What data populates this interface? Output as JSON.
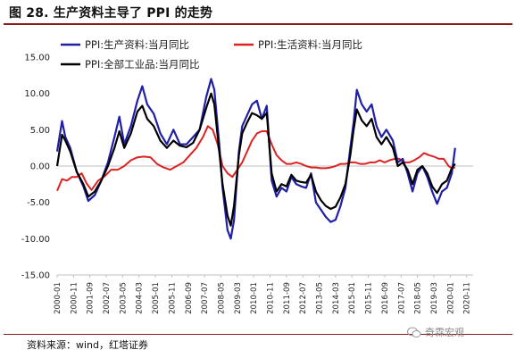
{
  "title": "图 28. 生产资料主导了 PPI 的走势",
  "source": "资料来源：wind，红塔证券",
  "watermark": "奇霖宏观",
  "chart_data": {
    "type": "line",
    "y_ticks": [
      "15.00",
      "10.00",
      "5.00",
      "0.00",
      "-5.00",
      "-10.00",
      "-15.00"
    ],
    "ylim": [
      -15,
      15
    ],
    "legend_position": "top-left",
    "grid": false,
    "x_ticks": [
      "2000-01",
      "2000-11",
      "2001-09",
      "2002-07",
      "2003-05",
      "2004-03",
      "2005-01",
      "2005-11",
      "2006-09",
      "2007-07",
      "2008-05",
      "2009-03",
      "2010-01",
      "2010-11",
      "2011-09",
      "2012-07",
      "2013-05",
      "2014-03",
      "2015-01",
      "2015-11",
      "2016-09",
      "2017-07",
      "2018-05",
      "2019-03",
      "2020-01",
      "2020-11"
    ],
    "x_span_months": 254,
    "series": [
      {
        "name": "PPI:生产资料:当月同比",
        "color": "#1f1fa8",
        "points": [
          [
            0,
            2
          ],
          [
            3,
            6.2
          ],
          [
            5,
            4
          ],
          [
            8,
            2.5
          ],
          [
            12,
            -0.8
          ],
          [
            16,
            -2.8
          ],
          [
            19,
            -4.8
          ],
          [
            23,
            -4
          ],
          [
            27,
            -2
          ],
          [
            31,
            0.5
          ],
          [
            35,
            4
          ],
          [
            38,
            6.8
          ],
          [
            41,
            3
          ],
          [
            45,
            5.5
          ],
          [
            49,
            9
          ],
          [
            52,
            11
          ],
          [
            55,
            8.5
          ],
          [
            59,
            7.2
          ],
          [
            63,
            4.5
          ],
          [
            67,
            3
          ],
          [
            71,
            5
          ],
          [
            75,
            3
          ],
          [
            79,
            3
          ],
          [
            83,
            4
          ],
          [
            87,
            5
          ],
          [
            91,
            9.5
          ],
          [
            94,
            12
          ],
          [
            96,
            10.5
          ],
          [
            99,
            3
          ],
          [
            101,
            -3
          ],
          [
            104,
            -8.8
          ],
          [
            106,
            -10
          ],
          [
            108,
            -7.5
          ],
          [
            111,
            2
          ],
          [
            113,
            5.5
          ],
          [
            116,
            7
          ],
          [
            119,
            8.5
          ],
          [
            122,
            9
          ],
          [
            125,
            6.5
          ],
          [
            128,
            8.3
          ],
          [
            131,
            -2
          ],
          [
            134,
            -4.2
          ],
          [
            137,
            -3
          ],
          [
            140,
            -3.5
          ],
          [
            143,
            -1.5
          ],
          [
            146,
            -2.5
          ],
          [
            149,
            -2.8
          ],
          [
            152,
            -3
          ],
          [
            155,
            -1
          ],
          [
            158,
            -5
          ],
          [
            161,
            -6
          ],
          [
            164,
            -7
          ],
          [
            167,
            -7.7
          ],
          [
            170,
            -7.4
          ],
          [
            173,
            -5.5
          ],
          [
            176,
            -3
          ],
          [
            179,
            2.5
          ],
          [
            181,
            6
          ],
          [
            183,
            10.5
          ],
          [
            186,
            8.5
          ],
          [
            189,
            7.5
          ],
          [
            192,
            8.5
          ],
          [
            195,
            5.5
          ],
          [
            198,
            4
          ],
          [
            201,
            5
          ],
          [
            205,
            3.5
          ],
          [
            208,
            0.5
          ],
          [
            211,
            1
          ],
          [
            214,
            -1
          ],
          [
            217,
            -3.5
          ],
          [
            220,
            -1
          ],
          [
            223,
            0
          ],
          [
            226,
            -1.5
          ],
          [
            229,
            -3.5
          ],
          [
            232,
            -5.2
          ],
          [
            235,
            -3.5
          ],
          [
            238,
            -3
          ],
          [
            241,
            -1
          ],
          [
            243,
            2.5
          ]
        ]
      },
      {
        "name": "PPI:生活资料:当月同比",
        "color": "#dd2222",
        "points": [
          [
            0,
            -3.4
          ],
          [
            3,
            -1.8
          ],
          [
            6,
            -2
          ],
          [
            9,
            -1.5
          ],
          [
            12,
            -1.5
          ],
          [
            15,
            -1
          ],
          [
            18,
            -2.4
          ],
          [
            21,
            -3.3
          ],
          [
            25,
            -2
          ],
          [
            29,
            -1.4
          ],
          [
            33,
            -0.5
          ],
          [
            37,
            -0.5
          ],
          [
            41,
            0
          ],
          [
            45,
            0.8
          ],
          [
            49,
            1.2
          ],
          [
            53,
            1.3
          ],
          [
            57,
            1.2
          ],
          [
            61,
            0.3
          ],
          [
            65,
            -0.2
          ],
          [
            69,
            -0.5
          ],
          [
            73,
            0
          ],
          [
            77,
            0.5
          ],
          [
            81,
            1.5
          ],
          [
            85,
            2.5
          ],
          [
            89,
            4
          ],
          [
            92,
            5.5
          ],
          [
            95,
            5
          ],
          [
            98,
            3
          ],
          [
            101,
            0
          ],
          [
            104,
            -1
          ],
          [
            107,
            -1.5
          ],
          [
            110,
            -0.5
          ],
          [
            113,
            0.5
          ],
          [
            116,
            2
          ],
          [
            119,
            3.5
          ],
          [
            122,
            4.5
          ],
          [
            125,
            4.8
          ],
          [
            128,
            4.8
          ],
          [
            131,
            3
          ],
          [
            134,
            1.5
          ],
          [
            137,
            0.8
          ],
          [
            140,
            0.3
          ],
          [
            143,
            0.3
          ],
          [
            146,
            0.5
          ],
          [
            149,
            0.3
          ],
          [
            152,
            0
          ],
          [
            155,
            -0.2
          ],
          [
            158,
            -0.2
          ],
          [
            161,
            -0.3
          ],
          [
            164,
            -0.3
          ],
          [
            167,
            -0.2
          ],
          [
            170,
            0
          ],
          [
            173,
            0.3
          ],
          [
            176,
            0.3
          ],
          [
            179,
            0.5
          ],
          [
            182,
            0.5
          ],
          [
            185,
            0.3
          ],
          [
            188,
            0.3
          ],
          [
            191,
            0.5
          ],
          [
            194,
            0.5
          ],
          [
            197,
            0.8
          ],
          [
            200,
            0.5
          ],
          [
            203,
            0.8
          ],
          [
            206,
            1
          ],
          [
            209,
            1
          ],
          [
            212,
            0.5
          ],
          [
            215,
            0.5
          ],
          [
            218,
            0.8
          ],
          [
            221,
            1.2
          ],
          [
            224,
            1.8
          ],
          [
            227,
            1.5
          ],
          [
            230,
            1.3
          ],
          [
            233,
            1
          ],
          [
            236,
            1
          ],
          [
            239,
            0
          ],
          [
            241,
            -0.3
          ],
          [
            243,
            -0.2
          ]
        ]
      },
      {
        "name": "PPI:全部工业品:当月同比",
        "color": "#000000",
        "points": [
          [
            0,
            0
          ],
          [
            3,
            4.3
          ],
          [
            5,
            3.5
          ],
          [
            8,
            2
          ],
          [
            12,
            -0.8
          ],
          [
            16,
            -2.5
          ],
          [
            19,
            -4.2
          ],
          [
            23,
            -3.5
          ],
          [
            27,
            -2
          ],
          [
            31,
            0
          ],
          [
            35,
            2.5
          ],
          [
            38,
            4.8
          ],
          [
            41,
            2.5
          ],
          [
            45,
            4.5
          ],
          [
            49,
            7.5
          ],
          [
            52,
            8.3
          ],
          [
            55,
            6.5
          ],
          [
            59,
            5.5
          ],
          [
            63,
            3.5
          ],
          [
            67,
            2.5
          ],
          [
            71,
            3.5
          ],
          [
            75,
            2.8
          ],
          [
            79,
            2.6
          ],
          [
            83,
            3.2
          ],
          [
            87,
            5
          ],
          [
            91,
            8
          ],
          [
            94,
            10
          ],
          [
            96,
            8.5
          ],
          [
            99,
            2
          ],
          [
            101,
            -2.5
          ],
          [
            104,
            -6.8
          ],
          [
            106,
            -8.2
          ],
          [
            108,
            -5.5
          ],
          [
            111,
            1.5
          ],
          [
            113,
            4.5
          ],
          [
            116,
            6
          ],
          [
            119,
            7.3
          ],
          [
            122,
            7
          ],
          [
            125,
            6.5
          ],
          [
            128,
            7.3
          ],
          [
            131,
            -1
          ],
          [
            134,
            -3.5
          ],
          [
            137,
            -2.5
          ],
          [
            140,
            -2.8
          ],
          [
            143,
            -1.2
          ],
          [
            146,
            -2
          ],
          [
            149,
            -2.2
          ],
          [
            152,
            -2.3
          ],
          [
            155,
            -1.2
          ],
          [
            158,
            -3.5
          ],
          [
            161,
            -4.7
          ],
          [
            164,
            -5.5
          ],
          [
            167,
            -5.9
          ],
          [
            170,
            -5.6
          ],
          [
            173,
            -4.3
          ],
          [
            176,
            -2.5
          ],
          [
            179,
            1.5
          ],
          [
            181,
            5
          ],
          [
            183,
            7.8
          ],
          [
            186,
            6.3
          ],
          [
            189,
            5.5
          ],
          [
            192,
            6.5
          ],
          [
            195,
            4
          ],
          [
            198,
            3
          ],
          [
            201,
            4
          ],
          [
            205,
            2.5
          ],
          [
            208,
            0
          ],
          [
            211,
            0.5
          ],
          [
            214,
            -0.5
          ],
          [
            217,
            -2.5
          ],
          [
            220,
            -0.5
          ],
          [
            223,
            0
          ],
          [
            226,
            -1
          ],
          [
            229,
            -2.8
          ],
          [
            232,
            -3.7
          ],
          [
            235,
            -2.5
          ],
          [
            238,
            -2
          ],
          [
            241,
            -0.3
          ],
          [
            243,
            0.3
          ]
        ]
      }
    ]
  }
}
